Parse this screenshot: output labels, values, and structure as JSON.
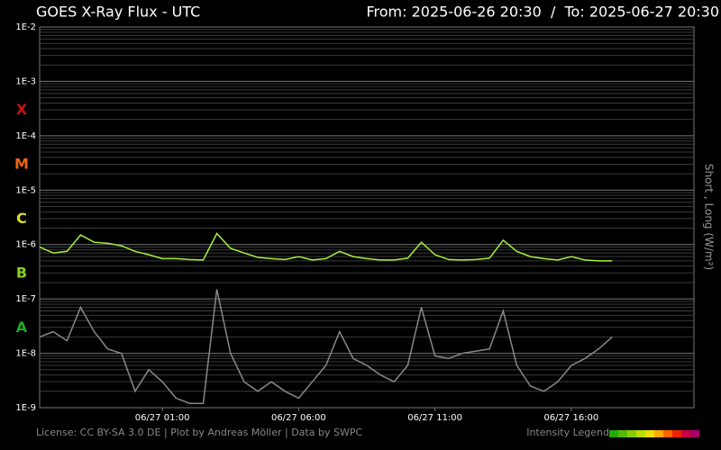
{
  "chart_data": {
    "type": "line",
    "title": "GOES X-Ray Flux - UTC",
    "subtitle": "From: 2025-06-26 20:30  /  To: 2025-06-27 20:30",
    "y_label": "Short , Long (W/m²)",
    "footer": "License: CC BY-SA 3.0 DE | Plot by Andreas Möller | Data by SWPC",
    "intensity_legend": {
      "label": "Intensity Legend",
      "colors": [
        "#22aa00",
        "#55bb00",
        "#88cc00",
        "#bbdd00",
        "#eedd00",
        "#ffaa00",
        "#ff6600",
        "#ee2200",
        "#cc0044",
        "#aa0066"
      ]
    },
    "log_y": true,
    "grid": true,
    "minor_grid": true,
    "xlim": [
      "2025-06-26 20:30",
      "2025-06-27 20:30"
    ],
    "xticks": [
      {
        "value": "2025-06-27 01:00",
        "label": "06/27 01:00"
      },
      {
        "value": "2025-06-27 06:00",
        "label": "06/27 06:00"
      },
      {
        "value": "2025-06-27 11:00",
        "label": "06/27 11:00"
      },
      {
        "value": "2025-06-27 16:00",
        "label": "06/27 16:00"
      }
    ],
    "ylim": [
      1e-09,
      0.01
    ],
    "yticks": [
      {
        "value": 1e-09,
        "label": "1E-9"
      },
      {
        "value": 1e-08,
        "label": "1E-8"
      },
      {
        "value": 1e-07,
        "label": "1E-7"
      },
      {
        "value": 1e-06,
        "label": "1E-6"
      },
      {
        "value": 1e-05,
        "label": "1E-5"
      },
      {
        "value": 0.0001,
        "label": "1E-4"
      },
      {
        "value": 0.001,
        "label": "1E-3"
      },
      {
        "value": 0.01,
        "label": "1E-2"
      }
    ],
    "class_labels": [
      {
        "label": "X",
        "value": 0.0001,
        "color": "#cc1111"
      },
      {
        "label": "M",
        "value": 1e-05,
        "color": "#ee6611"
      },
      {
        "label": "C",
        "value": 1e-06,
        "color": "#dddd22"
      },
      {
        "label": "B",
        "value": 1e-07,
        "color": "#88cc22"
      },
      {
        "label": "A",
        "value": 1e-08,
        "color": "#22aa22"
      }
    ],
    "x": [
      "2025-06-26 20:30",
      "2025-06-26 21:00",
      "2025-06-26 21:30",
      "2025-06-26 22:00",
      "2025-06-26 22:30",
      "2025-06-26 23:00",
      "2025-06-26 23:30",
      "2025-06-27 00:00",
      "2025-06-27 00:30",
      "2025-06-27 01:00",
      "2025-06-27 01:30",
      "2025-06-27 02:00",
      "2025-06-27 02:30",
      "2025-06-27 03:00",
      "2025-06-27 03:30",
      "2025-06-27 04:00",
      "2025-06-27 04:30",
      "2025-06-27 05:00",
      "2025-06-27 05:30",
      "2025-06-27 06:00",
      "2025-06-27 06:30",
      "2025-06-27 07:00",
      "2025-06-27 07:30",
      "2025-06-27 08:00",
      "2025-06-27 08:30",
      "2025-06-27 09:00",
      "2025-06-27 09:30",
      "2025-06-27 10:00",
      "2025-06-27 10:30",
      "2025-06-27 11:00",
      "2025-06-27 11:30",
      "2025-06-27 12:00",
      "2025-06-27 12:30",
      "2025-06-27 13:00",
      "2025-06-27 13:30",
      "2025-06-27 14:00",
      "2025-06-27 14:30",
      "2025-06-27 15:00",
      "2025-06-27 15:30",
      "2025-06-27 16:00",
      "2025-06-27 16:30",
      "2025-06-27 17:00",
      "2025-06-27 17:30"
    ],
    "series": [
      {
        "color": "#888888",
        "values": [
          2e-08,
          2.5e-08,
          1.7e-08,
          7e-08,
          2.5e-08,
          1.2e-08,
          1e-08,
          2e-09,
          5e-09,
          3e-09,
          1.5e-09,
          1.2e-09,
          1.2e-09,
          1.5e-07,
          1e-08,
          3e-09,
          2e-09,
          3e-09,
          2e-09,
          1.5e-09,
          3e-09,
          6e-09,
          2.5e-08,
          8e-09,
          6e-09,
          4e-09,
          3e-09,
          6e-09,
          7e-08,
          9e-09,
          8e-09,
          1e-08,
          1.1e-08,
          1.2e-08,
          6e-08,
          6e-09,
          2.5e-09,
          2e-09,
          3e-09,
          6e-09,
          8e-09,
          1.2e-08,
          2e-08
        ]
      },
      {
        "color": "#a8f03a",
        "values": [
          9e-07,
          7e-07,
          7.5e-07,
          1.5e-06,
          1.1e-06,
          1.05e-06,
          9.5e-07,
          7.5e-07,
          6.5e-07,
          5.5e-07,
          5.5e-07,
          5.3e-07,
          5.2e-07,
          1.6e-06,
          8.5e-07,
          7e-07,
          5.8e-07,
          5.5e-07,
          5.3e-07,
          6e-07,
          5.2e-07,
          5.5e-07,
          7.5e-07,
          6e-07,
          5.5e-07,
          5.2e-07,
          5.2e-07,
          5.6e-07,
          1.1e-06,
          6.5e-07,
          5.3e-07,
          5.2e-07,
          5.3e-07,
          5.6e-07,
          1.2e-06,
          7.5e-07,
          6e-07,
          5.5e-07,
          5.2e-07,
          6e-07,
          5.2e-07,
          5e-07,
          5e-07
        ]
      }
    ]
  }
}
